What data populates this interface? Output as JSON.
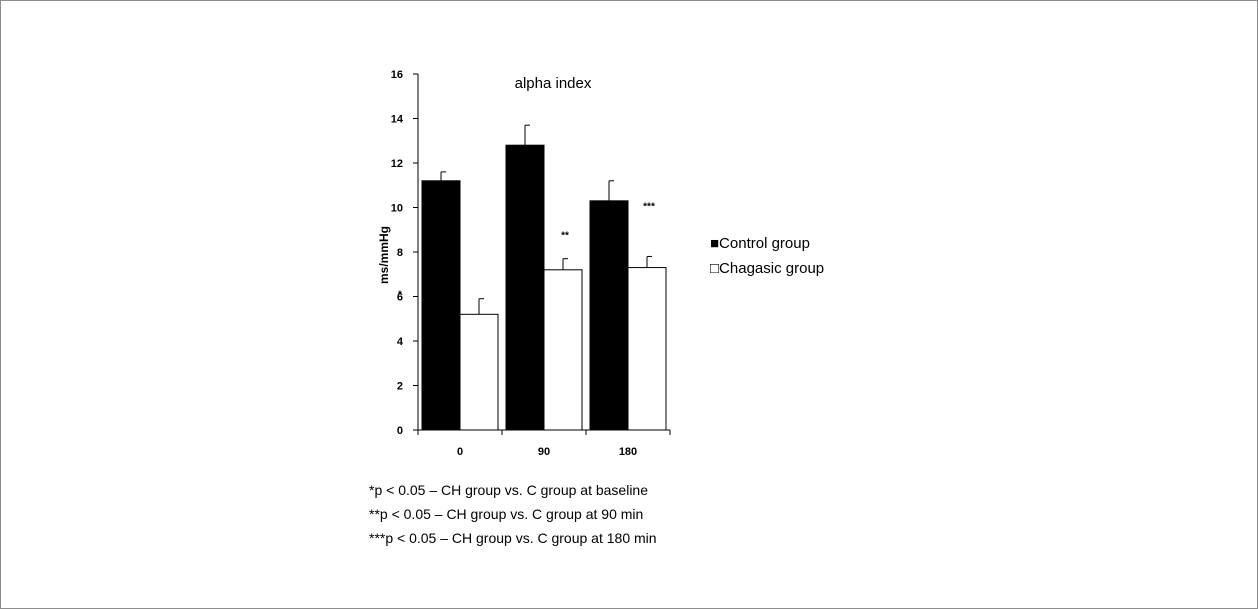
{
  "chart_data": {
    "type": "bar",
    "title": "alpha index",
    "ylabel": "ms/mmHg",
    "xlabel": "",
    "categories": [
      "0",
      "90",
      "180"
    ],
    "series": [
      {
        "name": "Control group",
        "values": [
          11.2,
          12.8,
          10.3
        ],
        "errors": [
          0.4,
          0.9,
          0.9
        ],
        "fill": "#000000"
      },
      {
        "name": "Chagasic group",
        "values": [
          5.2,
          7.2,
          7.3
        ],
        "errors": [
          0.7,
          0.5,
          0.5
        ],
        "fill": "#ffffff"
      }
    ],
    "significance": [
      "*",
      "**",
      "***"
    ],
    "ylim": [
      0,
      16
    ],
    "yticks": [
      0,
      2,
      4,
      6,
      8,
      10,
      12,
      14,
      16
    ],
    "grid": false,
    "legend_position": "right",
    "legend_markers": [
      "■",
      "□"
    ]
  },
  "footnotes": [
    "*p < 0.05 – CH group vs. C group at baseline",
    "**p < 0.05 – CH group vs. C group at 90 min",
    "***p < 0.05 – CH group vs. C group at 180 min"
  ]
}
